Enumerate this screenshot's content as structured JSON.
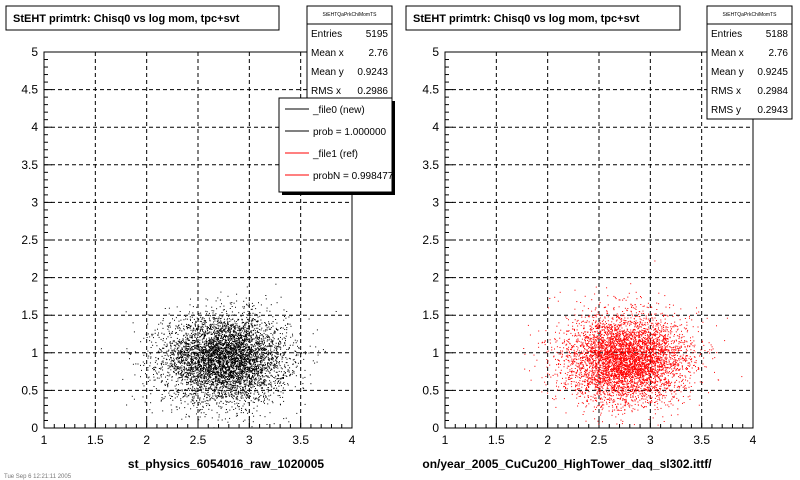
{
  "chart_data": [
    {
      "type": "scatter",
      "title": "StEHT primtrk: Chisq0 vs log mom, tpc+svt",
      "xlabel": "st_physics_6054016_raw_1020005",
      "ylabel": "",
      "xlim": [
        1,
        4
      ],
      "ylim": [
        0,
        5
      ],
      "xticks": [
        "1",
        "1.5",
        "2",
        "2.5",
        "3",
        "3.5",
        "4"
      ],
      "yticks": [
        "0",
        "0.5",
        "1",
        "1.5",
        "2",
        "2.5",
        "3",
        "3.5",
        "4",
        "4.5",
        "5"
      ],
      "grid": true,
      "marker_color": "#000000",
      "n_points_drawn": 5195,
      "distribution": {
        "x_mean": 2.76,
        "y_mean": 0.9243,
        "x_rms": 0.2986,
        "y_rms": 0.29
      },
      "stats": {
        "header": "StEHTQaPrkChiMomTS",
        "rows": [
          {
            "label": "Entries",
            "value": "5195"
          },
          {
            "label": "Mean x",
            "value": "2.76"
          },
          {
            "label": "Mean y",
            "value": "0.9243"
          },
          {
            "label": "RMS x",
            "value": "0.2986"
          }
        ]
      },
      "legend": {
        "placement": "top-right",
        "items": [
          {
            "label": "_file0 (new)",
            "color": "#000000"
          },
          {
            "label": "prob = 1.000000",
            "color": "#000000"
          },
          {
            "label": "_file1 (ref)",
            "color": "#ff0000"
          },
          {
            "label": "probN = 0.998477",
            "color": "#ff0000"
          }
        ]
      }
    },
    {
      "type": "scatter",
      "title": "StEHT primtrk: Chisq0 vs log mom, tpc+svt",
      "xlabel": "on/year_2005_CuCu200_HighTower_daq_sl302.ittf/",
      "ylabel": "",
      "xlim": [
        1,
        4
      ],
      "ylim": [
        0,
        5
      ],
      "xticks": [
        "1",
        "1.5",
        "2",
        "2.5",
        "3",
        "3.5",
        "4"
      ],
      "yticks": [
        "0",
        "0.5",
        "1",
        "1.5",
        "2",
        "2.5",
        "3",
        "3.5",
        "4",
        "4.5",
        "5"
      ],
      "grid": true,
      "marker_color": "#ff0000",
      "n_points_drawn": 5188,
      "distribution": {
        "x_mean": 2.76,
        "y_mean": 0.9245,
        "x_rms": 0.2984,
        "y_rms": 0.2943
      },
      "stats": {
        "header": "StEHTQaPrkChiMomTS",
        "rows": [
          {
            "label": "Entries",
            "value": "5188"
          },
          {
            "label": "Mean x",
            "value": "2.76"
          },
          {
            "label": "Mean y",
            "value": "0.9245"
          },
          {
            "label": "RMS x",
            "value": "0.2984"
          },
          {
            "label": "RMS y",
            "value": "0.2943"
          }
        ]
      }
    }
  ],
  "footer_text": "Tue Sep 6 12:21:11 2005"
}
